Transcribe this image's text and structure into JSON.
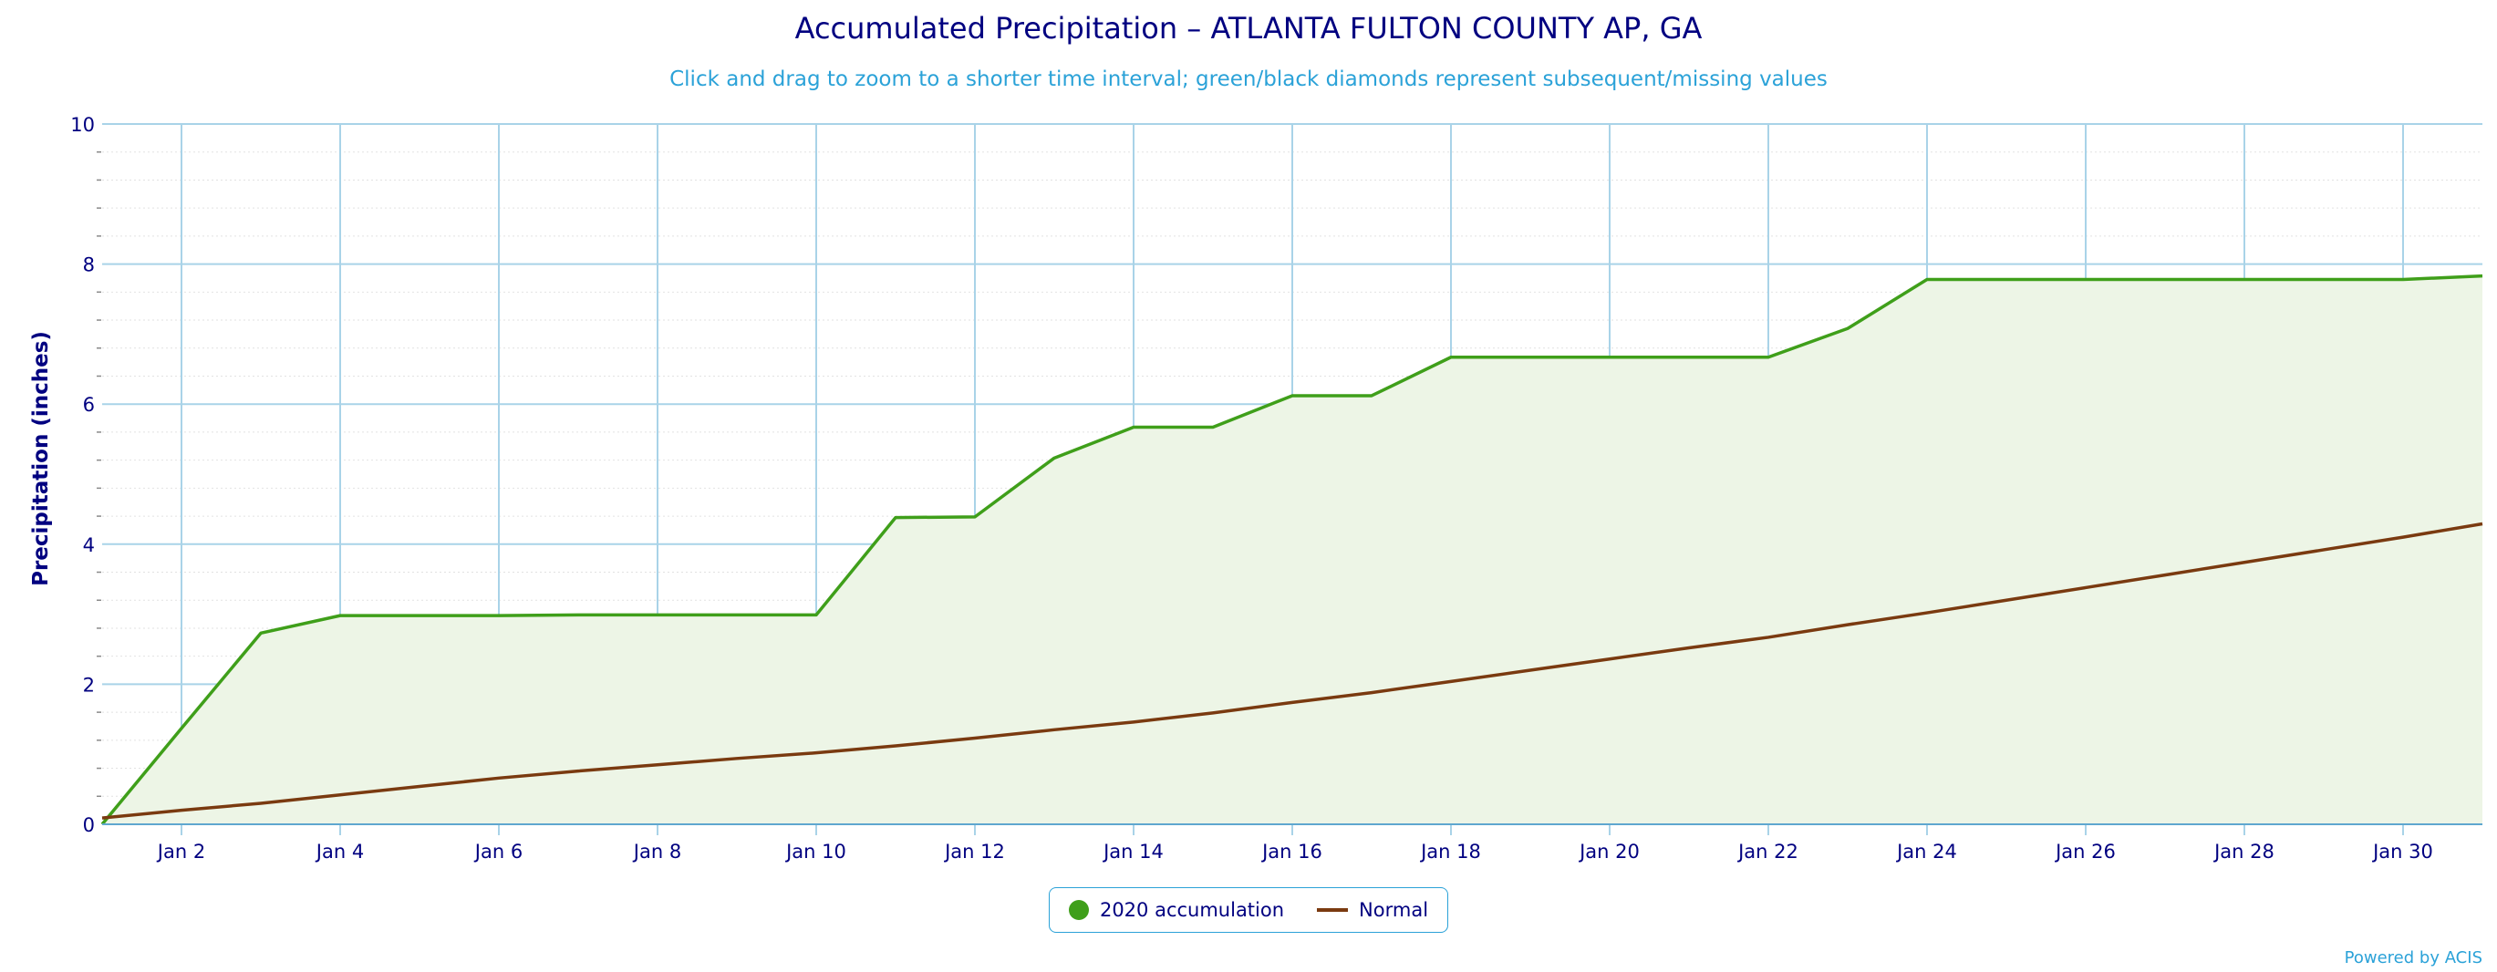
{
  "chart_data": {
    "type": "area",
    "title": "Accumulated Precipitation – ATLANTA FULTON COUNTY AP, GA",
    "subtitle": "Click and drag to zoom to a shorter time interval; green/black diamonds represent subsequent/missing values",
    "xlabel": "",
    "ylabel": "Precipitation (inches)",
    "ylim": [
      0,
      10
    ],
    "yticks": [
      0,
      2,
      4,
      6,
      8,
      10
    ],
    "x": [
      "Jan 1",
      "Jan 2",
      "Jan 3",
      "Jan 4",
      "Jan 5",
      "Jan 6",
      "Jan 7",
      "Jan 8",
      "Jan 9",
      "Jan 10",
      "Jan 11",
      "Jan 12",
      "Jan 13",
      "Jan 14",
      "Jan 15",
      "Jan 16",
      "Jan 17",
      "Jan 18",
      "Jan 19",
      "Jan 20",
      "Jan 21",
      "Jan 22",
      "Jan 23",
      "Jan 24",
      "Jan 25",
      "Jan 26",
      "Jan 27",
      "Jan 28",
      "Jan 29",
      "Jan 30",
      "Jan 31"
    ],
    "xtick_labels": [
      "Jan 2",
      "Jan 4",
      "Jan 6",
      "Jan 8",
      "Jan 10",
      "Jan 12",
      "Jan 14",
      "Jan 16",
      "Jan 18",
      "Jan 20",
      "Jan 22",
      "Jan 24",
      "Jan 26",
      "Jan 28",
      "Jan 30"
    ],
    "series": [
      {
        "name": "2020 accumulation",
        "color": "#3f9f1a",
        "fill": "#edf5e6",
        "values": [
          0.0,
          1.37,
          2.73,
          2.98,
          2.98,
          2.98,
          2.99,
          2.99,
          2.99,
          2.99,
          4.38,
          4.39,
          5.23,
          5.67,
          5.67,
          6.12,
          6.12,
          6.67,
          6.67,
          6.67,
          6.67,
          6.67,
          7.08,
          7.78,
          7.78,
          7.78,
          7.78,
          7.78,
          7.78,
          7.78,
          7.83
        ]
      },
      {
        "name": "Normal",
        "color": "#7a3a10",
        "values": [
          0.09,
          0.2,
          0.3,
          0.42,
          0.54,
          0.66,
          0.76,
          0.85,
          0.94,
          1.02,
          1.12,
          1.23,
          1.35,
          1.46,
          1.59,
          1.74,
          1.88,
          2.04,
          2.2,
          2.36,
          2.52,
          2.67,
          2.85,
          3.02,
          3.2,
          3.38,
          3.56,
          3.74,
          3.92,
          4.1,
          4.29
        ]
      }
    ],
    "grid": true,
    "legend_position": "bottom-center"
  },
  "credits": "Powered by ACIS"
}
